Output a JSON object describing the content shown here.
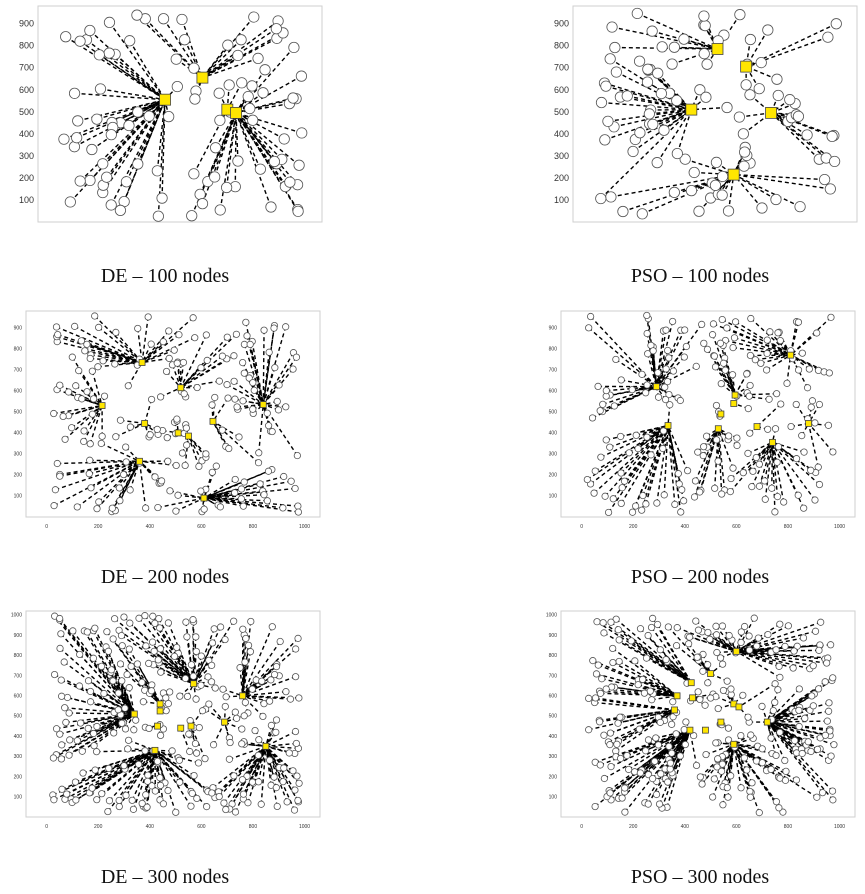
{
  "panels": [
    {
      "caption": "DE – 100 nodes",
      "nodes": 100,
      "heads": [
        [
          430,
          555
        ],
        [
          580,
          655
        ],
        [
          680,
          510
        ],
        [
          715,
          495
        ]
      ],
      "xticks": [
        "0",
        "200",
        "400",
        "600",
        "800",
        "1000"
      ],
      "yticks": [
        "900",
        "800",
        "700",
        "600",
        "500",
        "400",
        "300",
        "200",
        "100"
      ]
    },
    {
      "caption": "PSO – 100 nodes",
      "nodes": 100,
      "heads": [
        [
          500,
          785
        ],
        [
          615,
          705
        ],
        [
          395,
          510
        ],
        [
          715,
          495
        ],
        [
          565,
          215
        ]
      ],
      "xticks": [
        "0",
        "200",
        "400",
        "600",
        "800",
        "1000"
      ],
      "yticks": [
        "900",
        "800",
        "700",
        "600",
        "500",
        "400",
        "300",
        "200",
        "100"
      ]
    },
    {
      "caption": "DE – 200 nodes",
      "nodes": 200,
      "heads": [
        [
          370,
          735
        ],
        [
          520,
          615
        ],
        [
          215,
          530
        ],
        [
          840,
          535
        ],
        [
          380,
          445
        ],
        [
          645,
          455
        ],
        [
          510,
          400
        ],
        [
          550,
          385
        ],
        [
          360,
          265
        ],
        [
          610,
          90
        ]
      ],
      "xticks": [
        "0",
        "200",
        "400",
        "600",
        "800",
        "1000"
      ],
      "yticks": [
        "900",
        "800",
        "700",
        "600",
        "500",
        "400",
        "300",
        "200",
        "100"
      ]
    },
    {
      "caption": "PSO – 200 nodes",
      "nodes": 200,
      "heads": [
        [
          810,
          770
        ],
        [
          290,
          620
        ],
        [
          595,
          580
        ],
        [
          590,
          540
        ],
        [
          540,
          490
        ],
        [
          335,
          435
        ],
        [
          530,
          420
        ],
        [
          680,
          430
        ],
        [
          740,
          355
        ],
        [
          880,
          445
        ]
      ],
      "xticks": [
        "0",
        "200",
        "400",
        "600",
        "800",
        "1000"
      ],
      "yticks": [
        "900",
        "800",
        "700",
        "600",
        "500",
        "400",
        "300",
        "200",
        "100"
      ]
    },
    {
      "caption": "DE – 300 nodes",
      "nodes": 300,
      "heads": [
        [
          570,
          660
        ],
        [
          760,
          600
        ],
        [
          440,
          560
        ],
        [
          340,
          510
        ],
        [
          440,
          525
        ],
        [
          430,
          450
        ],
        [
          560,
          450
        ],
        [
          520,
          440
        ],
        [
          690,
          470
        ],
        [
          850,
          350
        ],
        [
          420,
          330
        ]
      ],
      "xticks": [
        "0",
        "200",
        "400",
        "600",
        "800",
        "1000"
      ],
      "yticks": [
        "1000",
        "900",
        "800",
        "700",
        "600",
        "500",
        "400",
        "300",
        "200",
        "100"
      ]
    },
    {
      "caption": "PSO – 300 nodes",
      "nodes": 300,
      "heads": [
        [
          600,
          820
        ],
        [
          500,
          710
        ],
        [
          425,
          665
        ],
        [
          370,
          600
        ],
        [
          430,
          590
        ],
        [
          590,
          560
        ],
        [
          610,
          545
        ],
        [
          360,
          530
        ],
        [
          720,
          470
        ],
        [
          540,
          470
        ],
        [
          480,
          430
        ],
        [
          420,
          430
        ],
        [
          590,
          360
        ]
      ],
      "xticks": [
        "0",
        "200",
        "400",
        "600",
        "800",
        "1000"
      ],
      "yticks": [
        "1000",
        "900",
        "800",
        "700",
        "600",
        "500",
        "400",
        "300",
        "200",
        "100"
      ]
    }
  ]
}
